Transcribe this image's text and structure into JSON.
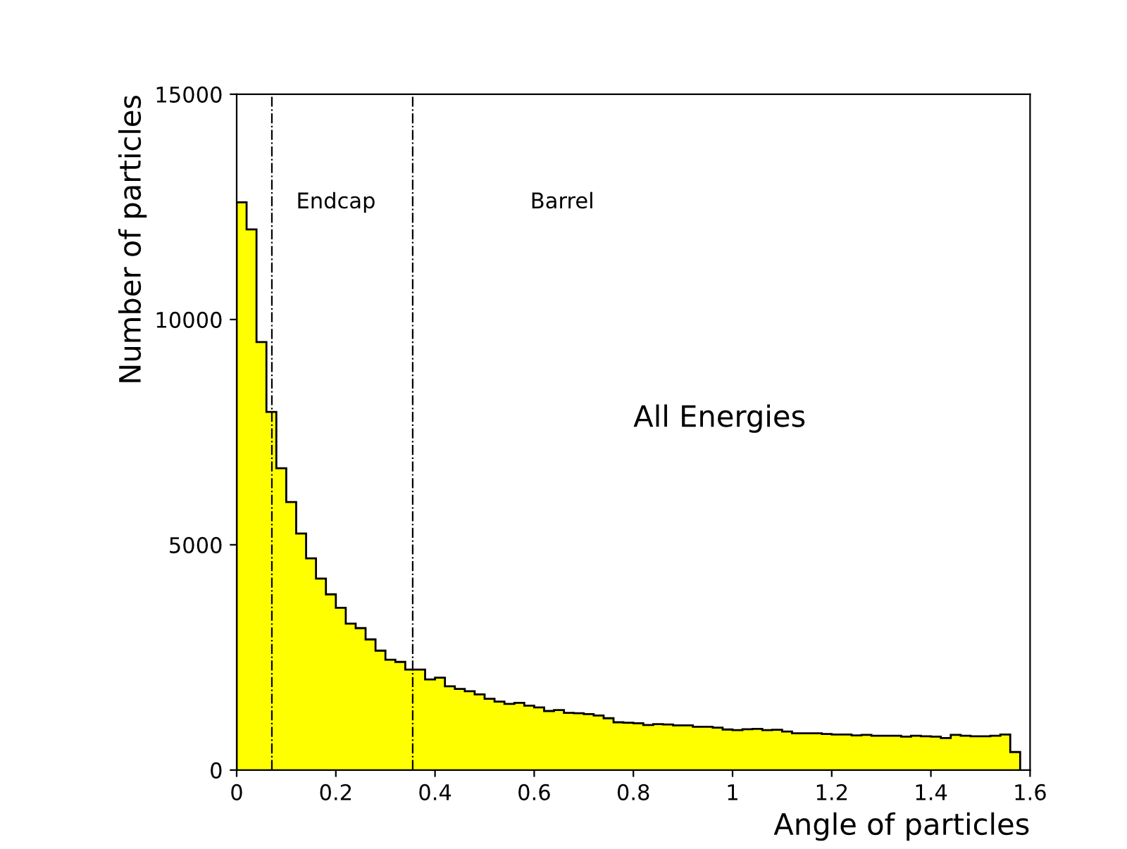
{
  "chart_data": {
    "type": "histogram",
    "xlabel": "Angle of particles",
    "ylabel": "Number of particles",
    "bins": [
      0,
      0.02,
      0.04,
      0.06,
      0.08,
      0.1,
      0.12,
      0.14,
      0.16,
      0.18,
      0.2,
      0.22,
      0.24,
      0.26,
      0.28,
      0.3,
      0.32,
      0.34,
      0.36,
      0.38,
      0.4,
      0.42,
      0.44,
      0.46,
      0.48,
      0.5,
      0.52,
      0.54,
      0.56,
      0.58,
      0.6,
      0.62,
      0.64,
      0.66,
      0.68,
      0.7,
      0.72,
      0.74,
      0.76,
      0.78,
      0.8,
      0.82,
      0.84,
      0.86,
      0.88,
      0.9,
      0.92,
      0.94,
      0.96,
      0.98,
      1.0,
      1.02,
      1.04,
      1.06,
      1.08,
      1.1,
      1.12,
      1.14,
      1.16,
      1.18,
      1.2,
      1.22,
      1.24,
      1.26,
      1.28,
      1.3,
      1.32,
      1.34,
      1.36,
      1.38,
      1.4,
      1.42,
      1.44,
      1.46,
      1.48,
      1.5,
      1.52,
      1.54,
      1.56,
      1.58
    ],
    "values": [
      12600,
      12000,
      9500,
      7950,
      6700,
      5950,
      5250,
      4700,
      4250,
      3900,
      3600,
      3250,
      3150,
      2900,
      2650,
      2450,
      2400,
      2230,
      2230,
      2010,
      2050,
      1860,
      1800,
      1750,
      1680,
      1580,
      1520,
      1470,
      1490,
      1430,
      1390,
      1310,
      1330,
      1270,
      1260,
      1240,
      1210,
      1150,
      1060,
      1050,
      1040,
      1000,
      1020,
      1010,
      990,
      990,
      960,
      960,
      940,
      900,
      885,
      905,
      915,
      885,
      895,
      855,
      815,
      815,
      815,
      800,
      790,
      790,
      770,
      780,
      760,
      760,
      760,
      740,
      760,
      750,
      740,
      710,
      780,
      760,
      750,
      750,
      760,
      790,
      400
    ],
    "color": "#ffff00",
    "xlim": [
      0,
      1.6
    ],
    "xticks": [
      0,
      0.2,
      0.4,
      0.6,
      0.8,
      1,
      1.2,
      1.4,
      1.6
    ],
    "ylim": [
      0,
      15000
    ],
    "yticks": [
      0,
      5000,
      10000,
      15000
    ],
    "ref_lines": [
      {
        "axis": "x",
        "value": 0.071
      },
      {
        "axis": "x",
        "value": 0.355
      }
    ],
    "annotations": [
      "Endcap",
      "Barrel",
      "All Energies"
    ],
    "grid": false
  }
}
